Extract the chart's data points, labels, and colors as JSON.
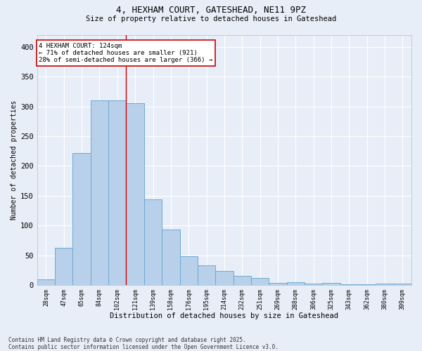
{
  "title_line1": "4, HEXHAM COURT, GATESHEAD, NE11 9PZ",
  "title_line2": "Size of property relative to detached houses in Gateshead",
  "xlabel": "Distribution of detached houses by size in Gateshead",
  "ylabel": "Number of detached properties",
  "categories": [
    "28sqm",
    "47sqm",
    "65sqm",
    "84sqm",
    "102sqm",
    "121sqm",
    "139sqm",
    "158sqm",
    "176sqm",
    "195sqm",
    "214sqm",
    "232sqm",
    "251sqm",
    "269sqm",
    "288sqm",
    "306sqm",
    "325sqm",
    "343sqm",
    "362sqm",
    "380sqm",
    "399sqm"
  ],
  "values": [
    9,
    63,
    222,
    310,
    310,
    305,
    144,
    93,
    48,
    33,
    24,
    15,
    12,
    4,
    5,
    2,
    3,
    1,
    1,
    2,
    2
  ],
  "bar_color": "#b8d0ea",
  "bar_edge_color": "#6aaad4",
  "bg_color": "#e8eef8",
  "grid_color": "#ffffff",
  "vline_color": "#cc0000",
  "vline_x_index": 4.5,
  "annotation_text": "4 HEXHAM COURT: 124sqm\n← 71% of detached houses are smaller (921)\n28% of semi-detached houses are larger (366) →",
  "annotation_box_facecolor": "#ffffff",
  "annotation_box_edgecolor": "#cc0000",
  "footer_line1": "Contains HM Land Registry data © Crown copyright and database right 2025.",
  "footer_line2": "Contains public sector information licensed under the Open Government Licence v3.0.",
  "ylim": [
    0,
    420
  ],
  "yticks": [
    0,
    50,
    100,
    150,
    200,
    250,
    300,
    350,
    400
  ]
}
